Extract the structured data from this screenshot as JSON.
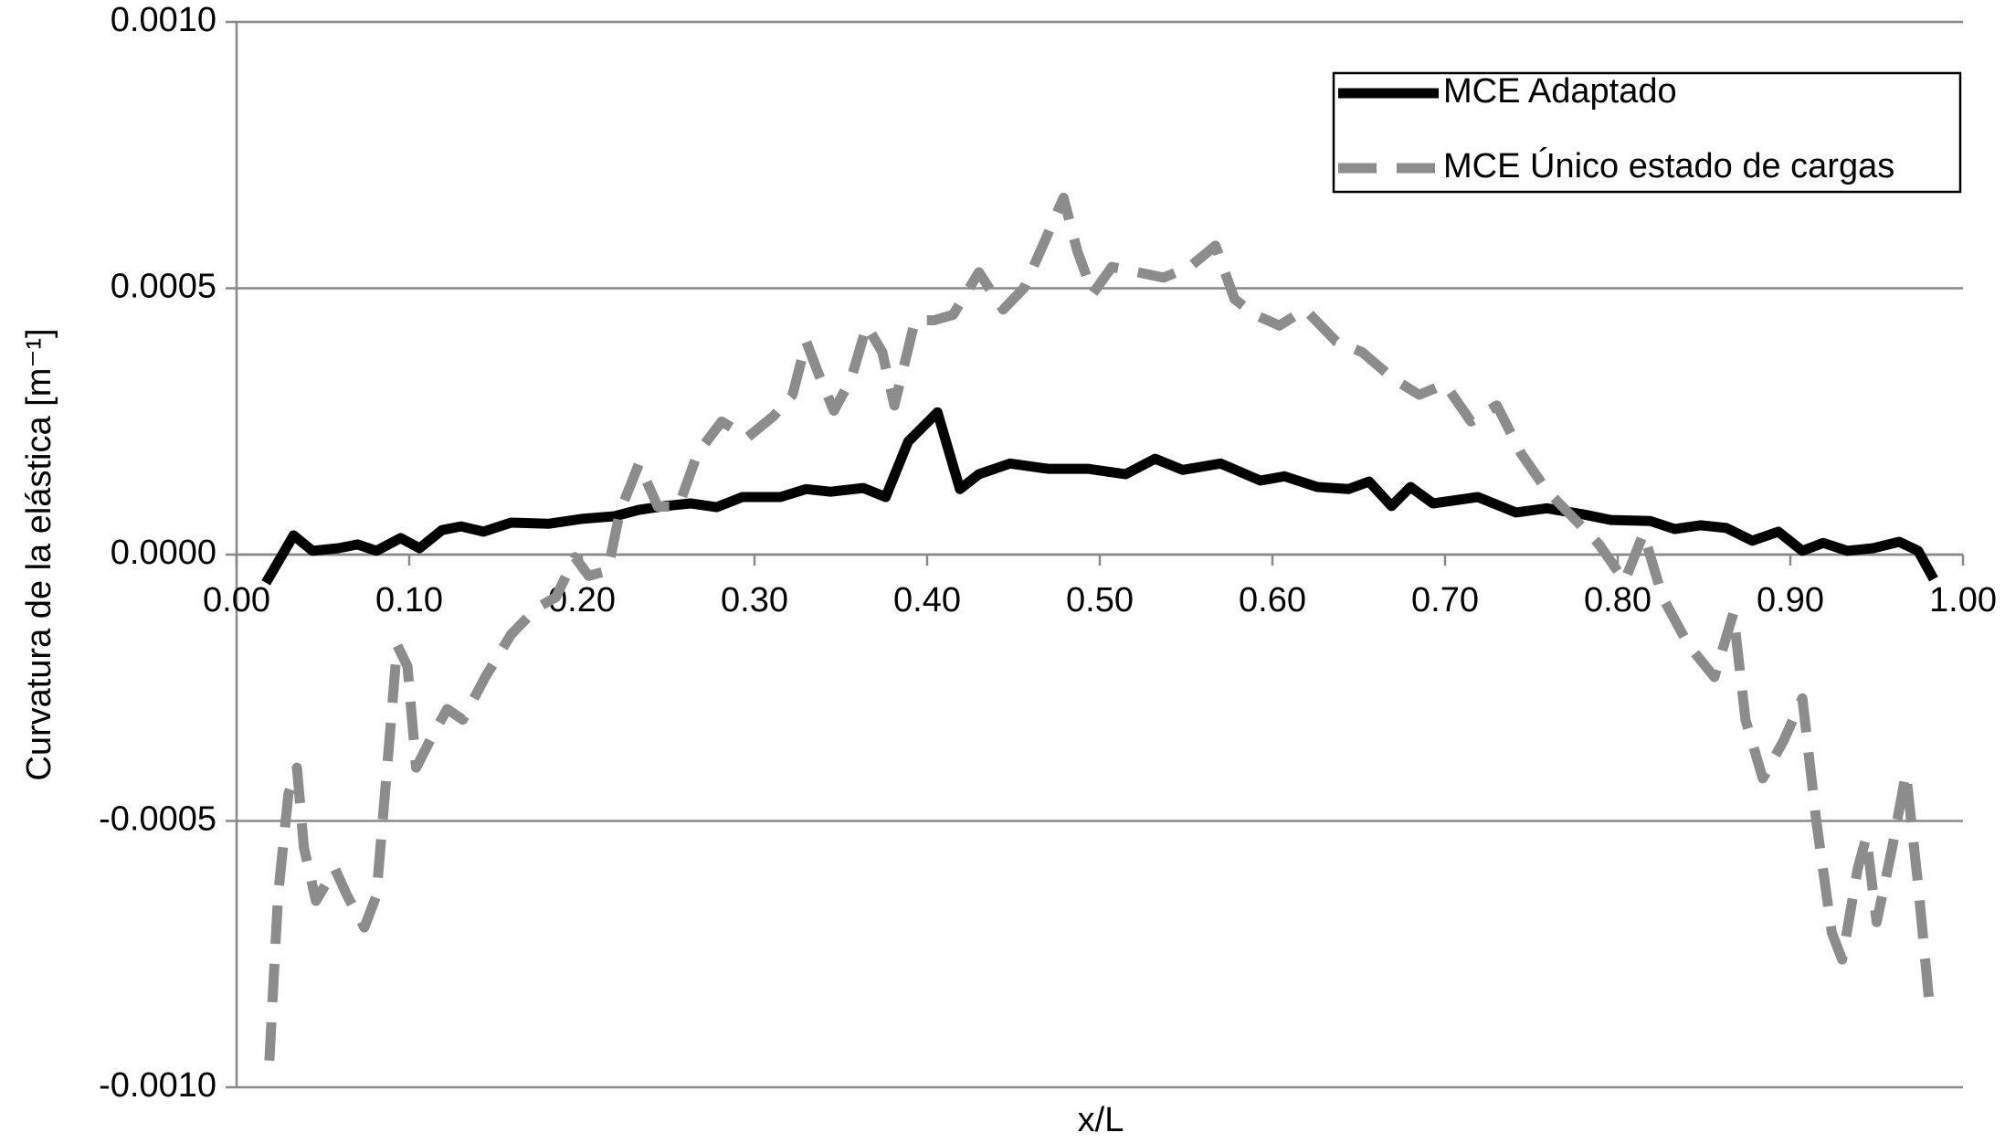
{
  "chart_data": {
    "type": "line",
    "xlabel": "x/L",
    "ylabel": "Curvatura de la elástica [m⁻¹]",
    "xlim": [
      0,
      1
    ],
    "ylim": [
      -0.001,
      0.001
    ],
    "xticks": [
      {
        "value": 0,
        "label": "0.00"
      },
      {
        "value": 0.1,
        "label": "0.10"
      },
      {
        "value": 0.2,
        "label": "0.20"
      },
      {
        "value": 0.3,
        "label": "0.30"
      },
      {
        "value": 0.4,
        "label": "0.40"
      },
      {
        "value": 0.5,
        "label": "0.50"
      },
      {
        "value": 0.6,
        "label": "0.60"
      },
      {
        "value": 0.7,
        "label": "0.70"
      },
      {
        "value": 0.8,
        "label": "0.80"
      },
      {
        "value": 0.9,
        "label": "0.90"
      },
      {
        "value": 1,
        "label": "1.00"
      }
    ],
    "yticks": [
      {
        "value": 0.001,
        "label": "0.0010"
      },
      {
        "value": 0.0005,
        "label": "0.0005"
      },
      {
        "value": 0,
        "label": "0.0000"
      },
      {
        "value": -0.0005,
        "label": "-0.0005"
      },
      {
        "value": -0.001,
        "label": "-0.0010"
      }
    ],
    "grid": true,
    "legend": "upper right",
    "series": [
      {
        "name": "MCE Adaptado",
        "color": "#000000",
        "dash": false,
        "x": [
          0.017,
          0.033,
          0.044,
          0.059,
          0.07,
          0.081,
          0.095,
          0.106,
          0.119,
          0.13,
          0.143,
          0.159,
          0.181,
          0.2,
          0.219,
          0.233,
          0.248,
          0.263,
          0.278,
          0.293,
          0.315,
          0.33,
          0.344,
          0.363,
          0.376,
          0.389,
          0.406,
          0.419,
          0.43,
          0.448,
          0.47,
          0.493,
          0.515,
          0.532,
          0.548,
          0.57,
          0.593,
          0.607,
          0.626,
          0.644,
          0.656,
          0.669,
          0.68,
          0.693,
          0.719,
          0.741,
          0.759,
          0.781,
          0.796,
          0.819,
          0.833,
          0.848,
          0.863,
          0.878,
          0.893,
          0.907,
          0.919,
          0.933,
          0.948,
          0.963,
          0.974,
          0.983
        ],
        "values": [
          -5.3e-05,
          3.6e-05,
          7e-06,
          1.2e-05,
          1.9e-05,
          7e-06,
          3.1e-05,
          1.2e-05,
          4.6e-05,
          5.3e-05,
          4.3e-05,
          6e-05,
          5.8e-05,
          6.7e-05,
          7.2e-05,
          8.4e-05,
          9.1e-05,
          9.6e-05,
          8.9e-05,
          0.000108,
          0.000108,
          0.000123,
          0.000118,
          0.000125,
          0.000108,
          0.000212,
          0.000267,
          0.000123,
          0.000151,
          0.000171,
          0.000161,
          0.000161,
          0.000151,
          0.00018,
          0.000159,
          0.000171,
          0.000139,
          0.000147,
          0.000127,
          0.000123,
          0.000137,
          9.1e-05,
          0.000127,
          9.6e-05,
          0.000108,
          7.9e-05,
          8.7e-05,
          7.5e-05,
          6.5e-05,
          6.3e-05,
          4.8e-05,
          5.5e-05,
          5e-05,
          2.6e-05,
          4.3e-05,
          7e-06,
          2.2e-05,
          7e-06,
          1.2e-05,
          2.4e-05,
          7e-06,
          -4.6e-05
        ]
      },
      {
        "name": "MCE Único estado de cargas",
        "color": "#8c8c8c",
        "dash": true,
        "x": [
          0.019,
          0.024,
          0.03,
          0.035,
          0.039,
          0.046,
          0.057,
          0.064,
          0.074,
          0.081,
          0.089,
          0.093,
          0.099,
          0.104,
          0.115,
          0.122,
          0.131,
          0.144,
          0.159,
          0.174,
          0.185,
          0.196,
          0.204,
          0.215,
          0.222,
          0.233,
          0.244,
          0.256,
          0.267,
          0.281,
          0.296,
          0.311,
          0.322,
          0.33,
          0.337,
          0.346,
          0.356,
          0.365,
          0.374,
          0.381,
          0.393,
          0.404,
          0.415,
          0.43,
          0.444,
          0.456,
          0.467,
          0.479,
          0.487,
          0.496,
          0.507,
          0.522,
          0.537,
          0.552,
          0.567,
          0.578,
          0.59,
          0.604,
          0.619,
          0.637,
          0.652,
          0.67,
          0.685,
          0.7,
          0.715,
          0.73,
          0.744,
          0.759,
          0.774,
          0.789,
          0.804,
          0.815,
          0.826,
          0.841,
          0.856,
          0.867,
          0.874,
          0.884,
          0.896,
          0.907,
          0.915,
          0.924,
          0.93,
          0.939,
          0.944,
          0.95,
          0.959,
          0.967,
          0.974,
          0.981
        ],
        "values": [
          -0.00095,
          -0.00064,
          -0.00045,
          -0.0004,
          -0.00055,
          -0.00065,
          -0.00059,
          -0.00064,
          -0.0007,
          -0.00064,
          -0.00033,
          -0.00017,
          -0.00021,
          -0.0004,
          -0.00033,
          -0.00029,
          -0.00031,
          -0.00023,
          -0.00015,
          -0.0001,
          -8e-05,
          -5e-06,
          -4e-05,
          -3e-05,
          8e-05,
          0.00017,
          9e-05,
          9e-05,
          0.00019,
          0.00025,
          0.00022,
          0.00026,
          0.0003,
          0.0004,
          0.00034,
          0.00027,
          0.00033,
          0.00043,
          0.00038,
          0.00028,
          0.00044,
          0.00044,
          0.00045,
          0.00053,
          0.00046,
          0.0005,
          0.00058,
          0.00067,
          0.00057,
          0.00049,
          0.00054,
          0.00053,
          0.00052,
          0.00054,
          0.00058,
          0.00048,
          0.00045,
          0.00043,
          0.00046,
          0.0004,
          0.00038,
          0.00033,
          0.0003,
          0.00032,
          0.00025,
          0.00028,
          0.00019,
          0.00012,
          7e-05,
          2e-05,
          -5e-05,
          4e-05,
          -8e-05,
          -0.00017,
          -0.00023,
          -0.00011,
          -0.00031,
          -0.00042,
          -0.00035,
          -0.00027,
          -0.0005,
          -0.00071,
          -0.00076,
          -0.00059,
          -0.00053,
          -0.00069,
          -0.00055,
          -0.00041,
          -0.00062,
          -0.00086
        ]
      }
    ]
  }
}
